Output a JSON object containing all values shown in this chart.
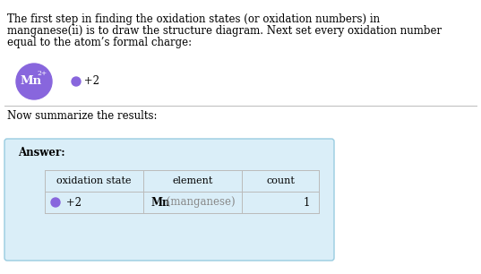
{
  "bg_color": "#ffffff",
  "text_color": "#000000",
  "gray_text": "#555555",
  "purple_color": "#8866dd",
  "light_blue_box": "#daeef8",
  "light_blue_border": "#99cce0",
  "paragraph_text_l1": "The first step in finding the oxidation states (or oxidation numbers) in",
  "paragraph_text_l2": "manganese(ii) is to draw the structure diagram. Next set every oxidation number",
  "paragraph_text_l3": "equal to the atom’s formal charge:",
  "mn_label": "Mn",
  "mn_superscript": "2+",
  "dot_label": " +2",
  "summary_text": "Now summarize the results:",
  "answer_label": "Answer:",
  "col_headers": [
    "oxidation state",
    "element",
    "count"
  ],
  "mn_bold": "Mn",
  "mn_gray": " (manganese)",
  "count_val": "1",
  "ox_val": "+2",
  "font_size_para": 8.5,
  "font_size_table": 8.5
}
